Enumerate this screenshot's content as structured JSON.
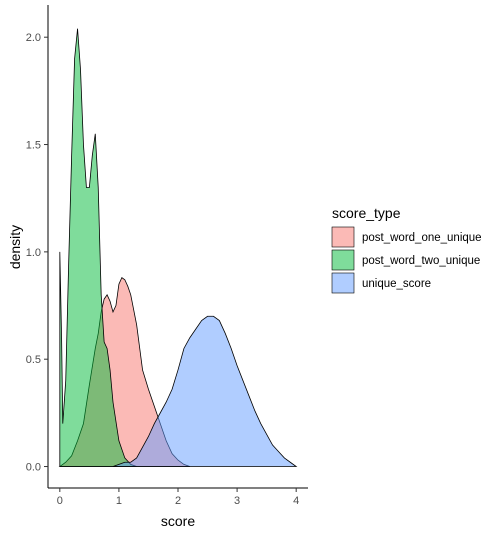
{
  "chart_data": {
    "type": "area",
    "xlabel": "score",
    "ylabel": "density",
    "xlim": [
      -0.2,
      4.2
    ],
    "ylim": [
      -0.1,
      2.15
    ],
    "x_ticks": [
      0,
      1,
      2,
      3,
      4
    ],
    "y_ticks": [
      0.0,
      0.5,
      1.0,
      1.5,
      2.0
    ],
    "x_tick_labels": [
      "0",
      "1",
      "2",
      "3",
      "4"
    ],
    "y_tick_labels": [
      "0.0",
      "0.5",
      "1.0",
      "1.5",
      "2.0"
    ],
    "grid": false,
    "legend": {
      "title": "score_type",
      "position": "right",
      "entries": [
        "post_word_one_unique",
        "post_word_two_unique",
        "unique_score"
      ]
    },
    "fill_opacity": 0.5,
    "series": [
      {
        "name": "post_word_one_unique",
        "color": "#F8766D",
        "points": [
          [
            0.0,
            0.0
          ],
          [
            0.1,
            0.02
          ],
          [
            0.2,
            0.05
          ],
          [
            0.3,
            0.12
          ],
          [
            0.4,
            0.2
          ],
          [
            0.5,
            0.38
          ],
          [
            0.6,
            0.55
          ],
          [
            0.65,
            0.62
          ],
          [
            0.7,
            0.72
          ],
          [
            0.75,
            0.78
          ],
          [
            0.8,
            0.8
          ],
          [
            0.85,
            0.77
          ],
          [
            0.9,
            0.72
          ],
          [
            0.95,
            0.75
          ],
          [
            1.0,
            0.85
          ],
          [
            1.05,
            0.88
          ],
          [
            1.1,
            0.87
          ],
          [
            1.15,
            0.84
          ],
          [
            1.2,
            0.8
          ],
          [
            1.3,
            0.66
          ],
          [
            1.4,
            0.45
          ],
          [
            1.5,
            0.36
          ],
          [
            1.6,
            0.28
          ],
          [
            1.7,
            0.2
          ],
          [
            1.8,
            0.12
          ],
          [
            1.9,
            0.06
          ],
          [
            2.0,
            0.03
          ],
          [
            2.1,
            0.01
          ],
          [
            2.2,
            0.0
          ]
        ]
      },
      {
        "name": "post_word_two_unique",
        "color": "#00BA38",
        "points": [
          [
            0.0,
            1.0
          ],
          [
            0.03,
            0.6
          ],
          [
            0.05,
            0.2
          ],
          [
            0.1,
            0.4
          ],
          [
            0.15,
            0.95
          ],
          [
            0.2,
            1.45
          ],
          [
            0.25,
            1.9
          ],
          [
            0.3,
            2.04
          ],
          [
            0.35,
            1.85
          ],
          [
            0.4,
            1.5
          ],
          [
            0.45,
            1.3
          ],
          [
            0.5,
            1.3
          ],
          [
            0.55,
            1.45
          ],
          [
            0.6,
            1.55
          ],
          [
            0.65,
            1.3
          ],
          [
            0.7,
            0.8
          ],
          [
            0.75,
            0.58
          ],
          [
            0.8,
            0.55
          ],
          [
            0.85,
            0.45
          ],
          [
            0.9,
            0.3
          ],
          [
            1.0,
            0.12
          ],
          [
            1.1,
            0.04
          ],
          [
            1.2,
            0.01
          ],
          [
            1.3,
            0.0
          ]
        ]
      },
      {
        "name": "unique_score",
        "color": "#619CFF",
        "points": [
          [
            0.9,
            0.0
          ],
          [
            1.0,
            0.01
          ],
          [
            1.1,
            0.02
          ],
          [
            1.2,
            0.02
          ],
          [
            1.3,
            0.04
          ],
          [
            1.4,
            0.09
          ],
          [
            1.5,
            0.14
          ],
          [
            1.6,
            0.2
          ],
          [
            1.7,
            0.25
          ],
          [
            1.8,
            0.3
          ],
          [
            1.9,
            0.36
          ],
          [
            2.0,
            0.45
          ],
          [
            2.1,
            0.55
          ],
          [
            2.2,
            0.6
          ],
          [
            2.3,
            0.64
          ],
          [
            2.4,
            0.68
          ],
          [
            2.5,
            0.7
          ],
          [
            2.6,
            0.7
          ],
          [
            2.7,
            0.68
          ],
          [
            2.8,
            0.62
          ],
          [
            2.9,
            0.55
          ],
          [
            3.0,
            0.47
          ],
          [
            3.1,
            0.4
          ],
          [
            3.2,
            0.33
          ],
          [
            3.3,
            0.26
          ],
          [
            3.4,
            0.2
          ],
          [
            3.5,
            0.15
          ],
          [
            3.6,
            0.1
          ],
          [
            3.7,
            0.07
          ],
          [
            3.8,
            0.04
          ],
          [
            3.9,
            0.02
          ],
          [
            4.0,
            0.0
          ]
        ]
      }
    ]
  }
}
